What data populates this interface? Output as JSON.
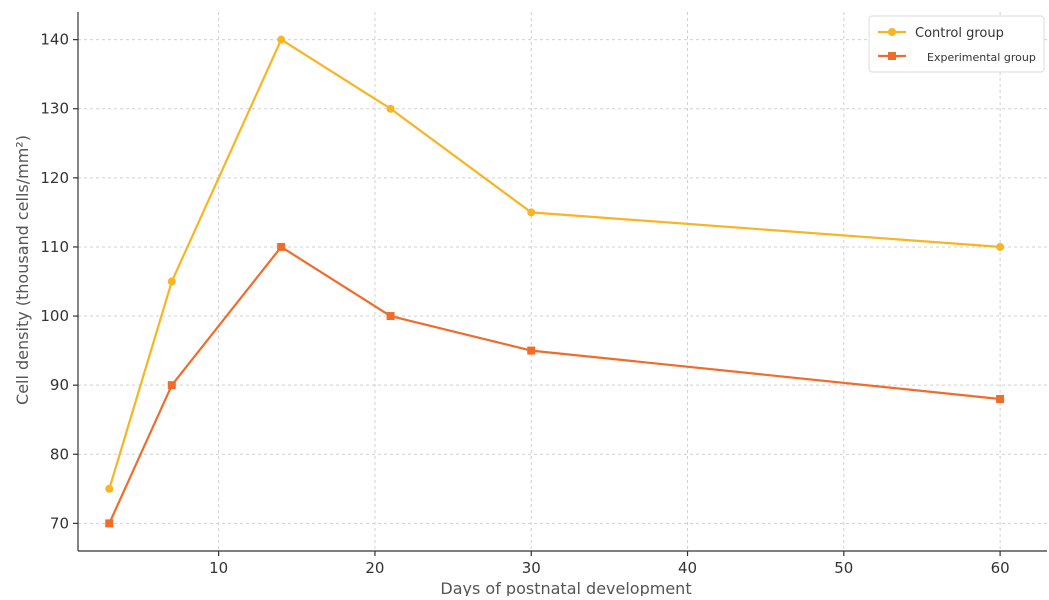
{
  "chart_data": {
    "type": "line",
    "xlabel": "Days of postnatal development",
    "ylabel": "Cell density (thousand cells/mm²)",
    "xlim": [
      1,
      63
    ],
    "ylim": [
      66,
      144
    ],
    "xticks": [
      10,
      20,
      30,
      40,
      50,
      60
    ],
    "yticks": [
      70,
      80,
      90,
      100,
      110,
      120,
      130,
      140
    ],
    "grid": true,
    "legend_position": "top-right",
    "x": [
      3,
      7,
      14,
      21,
      30,
      60
    ],
    "series": [
      {
        "name": "Control group",
        "values": [
          75,
          105,
          140,
          130,
          115,
          110
        ],
        "color": "#f8b422",
        "marker": "circle"
      },
      {
        "name": "Experimental group",
        "values": [
          70,
          90,
          110,
          100,
          95,
          88
        ],
        "color": "#ef6c2a",
        "marker": "square"
      }
    ]
  }
}
